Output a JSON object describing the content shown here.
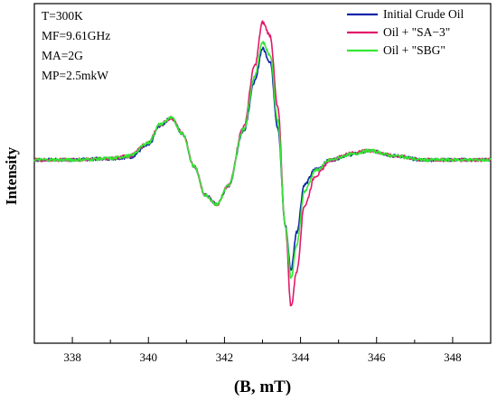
{
  "chart_data": {
    "type": "line",
    "title": "",
    "xlabel": "(B, mT)",
    "ylabel": "Intensity",
    "xlim": [
      337,
      349
    ],
    "ylim": [
      -1,
      1
    ],
    "x_ticks": [
      338,
      340,
      342,
      344,
      346,
      348
    ],
    "x_tick_labels": [
      "338",
      "340",
      "342",
      "344",
      "346",
      "348"
    ],
    "y_tick_labels_shown": false,
    "grid": false,
    "legend_position": "top-right",
    "annotations": [
      "T=300K",
      "MF=9.61GHz",
      "MA=2G",
      "MP=2.5mkW"
    ],
    "series": [
      {
        "name": "Initial Crude Oil",
        "color": "#0f24a8",
        "x": [
          337.0,
          338.0,
          339.0,
          339.5,
          340.0,
          340.3,
          340.6,
          340.9,
          341.2,
          341.5,
          341.8,
          342.1,
          342.5,
          342.8,
          343.0,
          343.2,
          343.4,
          343.6,
          343.75,
          343.9,
          344.1,
          344.4,
          344.8,
          345.3,
          345.8,
          346.5,
          347.2,
          348.0,
          349.0
        ],
        "values": [
          0.0,
          0.0,
          0.01,
          0.02,
          0.11,
          0.26,
          0.32,
          0.2,
          -0.05,
          -0.27,
          -0.34,
          -0.2,
          0.22,
          0.6,
          0.85,
          0.75,
          0.25,
          -0.5,
          -0.84,
          -0.55,
          -0.19,
          -0.07,
          0.0,
          0.04,
          0.07,
          0.03,
          0.0,
          0.0,
          0.0
        ]
      },
      {
        "name": "Oil  + \"SA−3\"",
        "color": "#e01a6b",
        "x": [
          337.0,
          338.0,
          339.0,
          339.5,
          340.0,
          340.3,
          340.6,
          340.9,
          341.2,
          341.5,
          341.8,
          342.1,
          342.5,
          342.8,
          343.0,
          343.2,
          343.4,
          343.6,
          343.75,
          343.9,
          344.1,
          344.4,
          344.8,
          345.3,
          345.8,
          346.5,
          347.2,
          348.0,
          349.0
        ],
        "values": [
          0.0,
          0.0,
          0.01,
          0.03,
          0.13,
          0.27,
          0.32,
          0.2,
          -0.05,
          -0.27,
          -0.34,
          -0.2,
          0.25,
          0.72,
          1.05,
          0.95,
          0.4,
          -0.5,
          -1.12,
          -0.85,
          -0.35,
          -0.12,
          0.0,
          0.05,
          0.07,
          0.03,
          0.0,
          0.0,
          0.0
        ]
      },
      {
        "name": "Oil  + \"SBG\"",
        "color": "#33e633",
        "x": [
          337.0,
          338.0,
          339.0,
          339.5,
          340.0,
          340.3,
          340.6,
          340.9,
          341.2,
          341.5,
          341.8,
          342.1,
          342.5,
          342.8,
          343.0,
          343.2,
          343.4,
          343.6,
          343.75,
          343.9,
          344.1,
          344.4,
          344.8,
          345.3,
          345.8,
          346.5,
          347.2,
          348.0,
          349.0
        ],
        "values": [
          0.0,
          0.0,
          0.01,
          0.03,
          0.13,
          0.27,
          0.32,
          0.2,
          -0.05,
          -0.27,
          -0.34,
          -0.2,
          0.23,
          0.64,
          0.9,
          0.8,
          0.3,
          -0.5,
          -0.9,
          -0.65,
          -0.24,
          -0.08,
          0.0,
          0.04,
          0.07,
          0.03,
          0.0,
          0.0,
          0.0
        ]
      }
    ]
  }
}
